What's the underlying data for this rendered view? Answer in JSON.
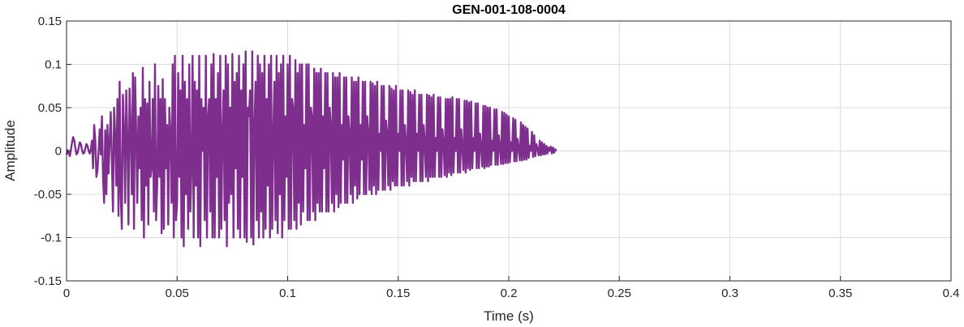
{
  "chart_data": {
    "type": "line",
    "title": "GEN-001-108-0004",
    "xlabel": "Time (s)",
    "ylabel": "Amplitude",
    "xlim": [
      0,
      0.4
    ],
    "ylim": [
      -0.15,
      0.15
    ],
    "x_ticks": [
      0,
      0.05,
      0.1,
      0.15,
      0.2,
      0.25,
      0.3,
      0.35,
      0.4
    ],
    "x_tick_labels": [
      "0",
      "0.05",
      "0.1",
      "0.15",
      "0.2",
      "0.25",
      "0.3",
      "0.35",
      "0.4"
    ],
    "y_ticks": [
      -0.15,
      -0.1,
      -0.05,
      0,
      0.05,
      0.1,
      0.15
    ],
    "y_tick_labels": [
      "-0.15",
      "-0.1",
      "-0.05",
      "0",
      "0.05",
      "0.1",
      "0.15"
    ],
    "grid": true,
    "series": [
      {
        "color": "#7e2f8e",
        "sample_interval_s": 0.0005,
        "values": [
          -0.004,
          0.001,
          -0.003,
          -0.006,
          0.002,
          0.01,
          0.016,
          0.012,
          0.003,
          -0.004,
          -0.002,
          0.004,
          0.01,
          0.008,
          0.001,
          -0.003,
          -0.002,
          0.003,
          0.008,
          0.006,
          0.0,
          -0.003,
          0.002,
          0.012,
          -0.02,
          0.03,
          0.012,
          -0.03,
          -0.022,
          0.0,
          0.025,
          -0.004,
          0.04,
          -0.03,
          -0.06,
          0.024,
          -0.05,
          0.03,
          -0.026,
          0.012,
          0.045,
          -0.012,
          -0.07,
          0.05,
          0.018,
          -0.04,
          0.06,
          -0.075,
          0.08,
          -0.05,
          -0.09,
          0.065,
          0.025,
          -0.06,
          0.07,
          0.015,
          -0.085,
          0.072,
          0.028,
          -0.05,
          0.09,
          -0.09,
          0.085,
          0.02,
          -0.06,
          0.04,
          -0.02,
          0.05,
          -0.08,
          0.096,
          -0.1,
          0.06,
          -0.04,
          0.055,
          -0.085,
          0.08,
          -0.03,
          -0.02,
          0.06,
          -0.07,
          0.1,
          -0.08,
          -0.04,
          0.075,
          -0.03,
          0.06,
          -0.095,
          0.083,
          -0.09,
          0.06,
          -0.02,
          0.03,
          -0.085,
          0.05,
          0.02,
          -0.06,
          0.1,
          -0.1,
          0.11,
          -0.08,
          -0.06,
          0.09,
          -0.03,
          0.07,
          -0.1,
          0.11,
          -0.11,
          0.08,
          -0.05,
          0.06,
          -0.09,
          0.1,
          -0.07,
          -0.02,
          0.11,
          -0.1,
          0.08,
          -0.04,
          0.07,
          -0.1,
          0.11,
          -0.11,
          0.06,
          0.0,
          0.05,
          -0.08,
          0.11,
          -0.1,
          0.04,
          0.06,
          -0.07,
          0.1,
          -0.1,
          0.112,
          -0.1,
          0.06,
          -0.03,
          0.09,
          -0.1,
          0.11,
          -0.09,
          0.02,
          0.07,
          -0.08,
          0.11,
          -0.11,
          0.1,
          -0.06,
          0.05,
          -0.05,
          0.112,
          -0.1,
          0.08,
          -0.02,
          0.09,
          -0.09,
          0.11,
          -0.1,
          0.07,
          -0.03,
          0.1,
          -0.1,
          0.115,
          -0.105,
          0.05,
          0.04,
          0.07,
          -0.1,
          0.115,
          -0.108,
          0.03,
          0.08,
          -0.08,
          0.11,
          -0.1,
          0.1,
          -0.07,
          0.09,
          -0.1,
          0.11,
          -0.09,
          0.06,
          -0.04,
          0.1,
          -0.1,
          0.11,
          -0.09,
          0.02,
          0.08,
          -0.08,
          0.11,
          -0.095,
          0.09,
          -0.05,
          0.1,
          -0.1,
          0.11,
          -0.08,
          0.04,
          -0.03,
          0.1,
          -0.09,
          0.11,
          -0.09,
          0.06,
          0.05,
          -0.08,
          0.105,
          -0.09,
          0.09,
          -0.06,
          0.1,
          -0.085,
          0.1,
          -0.07,
          0.03,
          -0.02,
          0.1,
          -0.08,
          0.1,
          -0.08,
          0.05,
          0.04,
          -0.07,
          0.095,
          -0.08,
          0.09,
          -0.06,
          0.09,
          -0.07,
          0.095,
          -0.07,
          0.04,
          -0.02,
          0.09,
          -0.07,
          0.09,
          -0.07,
          0.05,
          0.03,
          -0.06,
          0.09,
          -0.07,
          0.085,
          -0.05,
          0.085,
          -0.065,
          0.09,
          -0.06,
          0.03,
          -0.01,
          0.085,
          -0.06,
          0.085,
          -0.06,
          0.04,
          0.02,
          -0.05,
          0.085,
          -0.06,
          0.08,
          -0.04,
          0.08,
          -0.055,
          0.085,
          -0.05,
          0.03,
          -0.01,
          0.08,
          -0.05,
          0.08,
          -0.05,
          0.04,
          0.02,
          -0.045,
          0.08,
          -0.05,
          0.078,
          -0.04,
          0.075,
          -0.05,
          0.08,
          -0.045,
          0.02,
          0.0,
          0.075,
          -0.045,
          0.075,
          -0.045,
          0.035,
          0.02,
          -0.04,
          0.075,
          -0.045,
          0.072,
          -0.035,
          0.07,
          -0.04,
          0.075,
          -0.04,
          0.02,
          0.0,
          0.07,
          -0.04,
          0.07,
          -0.04,
          0.03,
          0.01,
          -0.035,
          0.07,
          -0.04,
          0.068,
          -0.03,
          0.065,
          -0.035,
          0.07,
          -0.035,
          0.02,
          0.0,
          0.065,
          -0.035,
          0.065,
          -0.035,
          0.03,
          0.01,
          -0.03,
          0.065,
          -0.035,
          0.064,
          -0.03,
          0.062,
          -0.03,
          0.065,
          -0.03,
          0.015,
          0.0,
          0.062,
          -0.03,
          0.062,
          -0.03,
          0.025,
          0.01,
          -0.028,
          0.06,
          -0.03,
          0.06,
          -0.025,
          0.06,
          -0.028,
          0.062,
          -0.025,
          0.015,
          0.0,
          0.06,
          -0.025,
          0.06,
          -0.025,
          0.025,
          0.005,
          -0.022,
          0.058,
          -0.025,
          0.058,
          -0.02,
          0.056,
          -0.022,
          0.057,
          -0.02,
          0.015,
          0.0,
          0.055,
          -0.02,
          0.055,
          -0.02,
          0.02,
          0.005,
          -0.018,
          0.052,
          -0.02,
          0.052,
          -0.018,
          0.05,
          -0.018,
          0.05,
          -0.016,
          0.012,
          0.0,
          0.048,
          -0.016,
          0.048,
          -0.016,
          0.018,
          0.004,
          -0.015,
          0.045,
          -0.015,
          0.044,
          -0.014,
          0.042,
          -0.014,
          0.04,
          -0.013,
          0.01,
          0.0,
          0.038,
          -0.012,
          0.036,
          -0.012,
          0.014,
          0.003,
          -0.011,
          0.033,
          -0.011,
          0.03,
          -0.01,
          0.028,
          -0.01,
          0.026,
          -0.008,
          0.006,
          0.0,
          0.022,
          -0.007,
          0.018,
          -0.006,
          0.008,
          0.002,
          -0.005,
          0.012,
          -0.005,
          0.01,
          -0.004,
          0.008,
          -0.004,
          0.006,
          -0.003,
          0.004,
          0.0,
          0.005,
          -0.003,
          0.004,
          -0.002,
          0.002,
          0.0
        ]
      }
    ]
  }
}
